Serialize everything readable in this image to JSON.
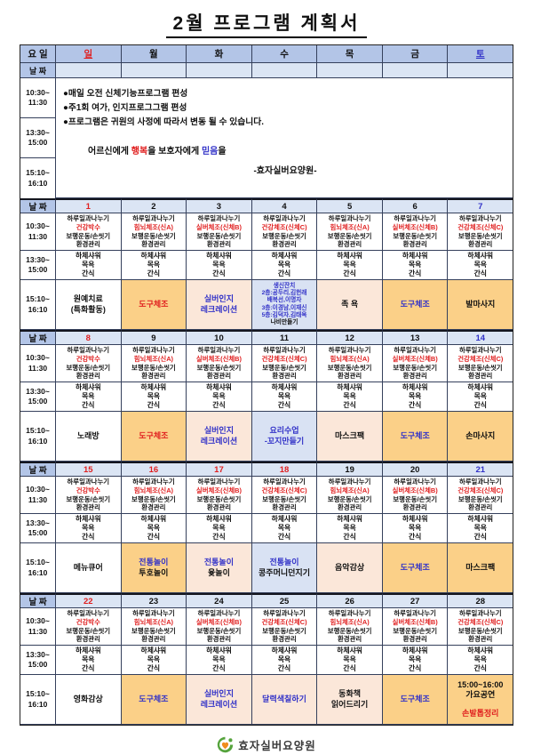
{
  "title": "2월 프로그램 계획서",
  "header": {
    "weekday_label": "요 일",
    "date_label": "날 짜",
    "days": [
      {
        "label": "일",
        "color": "red",
        "underline": true
      },
      {
        "label": "월",
        "color": "black",
        "underline": false
      },
      {
        "label": "화",
        "color": "black",
        "underline": false
      },
      {
        "label": "수",
        "color": "black",
        "underline": false
      },
      {
        "label": "목",
        "color": "black",
        "underline": false
      },
      {
        "label": "금",
        "color": "black",
        "underline": false
      },
      {
        "label": "토",
        "color": "blue",
        "underline": true
      }
    ]
  },
  "times": {
    "morning": "10:30~\n11:30",
    "afternoon": "13:30~\n15:00",
    "evening": "15:10~\n16:10"
  },
  "notice": {
    "bullets": [
      "●매일 오전 신체기능프로그램 편성",
      "●주1회 여가, 인지프로그그램 편성",
      "●프로그램은 귀원의 사정에 따라서 변동 될 수 있습니다."
    ],
    "slogan": [
      {
        "t": "어르신에게 ",
        "c": "black"
      },
      {
        "t": "행복",
        "c": "red"
      },
      {
        "t": "을 보호자에게 ",
        "c": "black"
      },
      {
        "t": "믿음",
        "c": "blue"
      },
      {
        "t": "을",
        "c": "black"
      }
    ],
    "signature": "-효자실버요양원-"
  },
  "programs": {
    "daily_first": "하루일과나누기",
    "by_weekday": [
      "건강박수",
      "힘뇌체조(신A)",
      "실버체조(신체B)",
      "건강체조(신체C)",
      "힘뇌체조(신A)",
      "실버체조(신체B)",
      "건강체조(신체C)"
    ],
    "daily_third": "보행운동/손씻기",
    "daily_fourth": "환경관리",
    "afternoon": [
      "하체샤워",
      "목욕",
      "간식"
    ]
  },
  "weeks": [
    {
      "dates": [
        {
          "n": "1",
          "c": "red"
        },
        {
          "n": "2",
          "c": "black"
        },
        {
          "n": "3",
          "c": "black"
        },
        {
          "n": "4",
          "c": "black"
        },
        {
          "n": "5",
          "c": "black"
        },
        {
          "n": "6",
          "c": "black"
        },
        {
          "n": "7",
          "c": "blue"
        }
      ],
      "evening": [
        {
          "bg": "white",
          "lines": [
            [
              "원예치료",
              "black"
            ],
            [
              "(특화활동)",
              "black"
            ]
          ]
        },
        {
          "bg": "orange",
          "lines": [
            [
              "도구체조",
              "red"
            ]
          ]
        },
        {
          "bg": "peach",
          "lines": [
            [
              "실버인지",
              "blue"
            ],
            [
              "레크레이션",
              "blue"
            ]
          ]
        },
        {
          "bg": "blue",
          "small": true,
          "lines": [
            [
              "생신잔치",
              "blue"
            ],
            [
              "2층:공두리,김헌래",
              "blue"
            ],
            [
              "배복선,이명자",
              "blue"
            ],
            [
              "3층:이경남,이재신",
              "blue"
            ],
            [
              "5층:김덕자,김태옥",
              "blue"
            ],
            [
              "나비만들기",
              "black"
            ]
          ]
        },
        {
          "bg": "peach",
          "lines": [
            [
              "족 욕",
              "black"
            ]
          ]
        },
        {
          "bg": "orange",
          "lines": [
            [
              "도구체조",
              "blue"
            ]
          ]
        },
        {
          "bg": "orange",
          "lines": [
            [
              "발마사지",
              "black"
            ]
          ]
        }
      ]
    },
    {
      "dates": [
        {
          "n": "8",
          "c": "red"
        },
        {
          "n": "9",
          "c": "black"
        },
        {
          "n": "10",
          "c": "black"
        },
        {
          "n": "11",
          "c": "black"
        },
        {
          "n": "12",
          "c": "black"
        },
        {
          "n": "13",
          "c": "black"
        },
        {
          "n": "14",
          "c": "blue"
        }
      ],
      "evening": [
        {
          "bg": "white",
          "lines": [
            [
              "노래방",
              "black"
            ]
          ]
        },
        {
          "bg": "orange",
          "lines": [
            [
              "도구체조",
              "red"
            ]
          ]
        },
        {
          "bg": "peach",
          "lines": [
            [
              "실버인지",
              "blue"
            ],
            [
              "레크레이션",
              "blue"
            ]
          ]
        },
        {
          "bg": "blue",
          "lines": [
            [
              "요리수업",
              "blue"
            ],
            [
              "-꼬지만들기",
              "blue"
            ]
          ]
        },
        {
          "bg": "peach",
          "lines": [
            [
              "마스크팩",
              "black"
            ]
          ]
        },
        {
          "bg": "orange",
          "lines": [
            [
              "도구체조",
              "blue"
            ]
          ]
        },
        {
          "bg": "orange",
          "lines": [
            [
              "손마사지",
              "black"
            ]
          ]
        }
      ]
    },
    {
      "dates": [
        {
          "n": "15",
          "c": "red"
        },
        {
          "n": "16",
          "c": "red"
        },
        {
          "n": "17",
          "c": "red"
        },
        {
          "n": "18",
          "c": "red"
        },
        {
          "n": "19",
          "c": "black"
        },
        {
          "n": "20",
          "c": "black"
        },
        {
          "n": "21",
          "c": "blue"
        }
      ],
      "evening": [
        {
          "bg": "white",
          "lines": [
            [
              "메뉴큐어",
              "black"
            ]
          ]
        },
        {
          "bg": "orange",
          "lines": [
            [
              "전통놀이",
              "blue"
            ],
            [
              "투호놀이",
              "black"
            ]
          ]
        },
        {
          "bg": "peach",
          "lines": [
            [
              "전통놀이",
              "blue"
            ],
            [
              "윷놀이",
              "black"
            ]
          ]
        },
        {
          "bg": "blue",
          "lines": [
            [
              "전통놀이",
              "blue"
            ],
            [
              "콩주머니던지기",
              "black"
            ]
          ]
        },
        {
          "bg": "peach",
          "lines": [
            [
              "음악감상",
              "black"
            ]
          ]
        },
        {
          "bg": "orange",
          "lines": [
            [
              "도구체조",
              "blue"
            ]
          ]
        },
        {
          "bg": "orange",
          "lines": [
            [
              "마스크팩",
              "black"
            ]
          ]
        }
      ]
    },
    {
      "dates": [
        {
          "n": "22",
          "c": "red"
        },
        {
          "n": "23",
          "c": "black"
        },
        {
          "n": "24",
          "c": "black"
        },
        {
          "n": "25",
          "c": "black"
        },
        {
          "n": "26",
          "c": "black"
        },
        {
          "n": "27",
          "c": "black"
        },
        {
          "n": "28",
          "c": "black"
        }
      ],
      "evening": [
        {
          "bg": "white",
          "lines": [
            [
              "영화감상",
              "black"
            ]
          ]
        },
        {
          "bg": "orange",
          "lines": [
            [
              "도구체조",
              "blue"
            ]
          ]
        },
        {
          "bg": "peach",
          "lines": [
            [
              "실버인지",
              "blue"
            ],
            [
              "레크레이션",
              "blue"
            ]
          ]
        },
        {
          "bg": "peach",
          "lines": [
            [
              "달력색칠하기",
              "blue"
            ]
          ]
        },
        {
          "bg": "peach",
          "lines": [
            [
              "동화책",
              "black"
            ],
            [
              "읽어드리기",
              "black"
            ]
          ]
        },
        {
          "bg": "orange",
          "lines": [
            [
              "도구체조",
              "blue"
            ]
          ]
        },
        {
          "bg": "orange",
          "lines": [
            [
              "15:00~16:00",
              "black"
            ],
            [
              "가요공연",
              "black"
            ],
            [
              "",
              ""
            ],
            [
              "손발톱정리",
              "red"
            ]
          ]
        }
      ]
    }
  ],
  "footer": {
    "name": "효자실버요양원"
  },
  "colors": {
    "red_text": "#e01f1f",
    "blue_text": "#3232c8",
    "header_bg": "#b3c5e7",
    "date_row_bg": "#dbe5f4",
    "orange_bg": "#fbd088",
    "peach_bg": "#fbe7d9",
    "lightblue_bg": "#d9e2f3"
  }
}
